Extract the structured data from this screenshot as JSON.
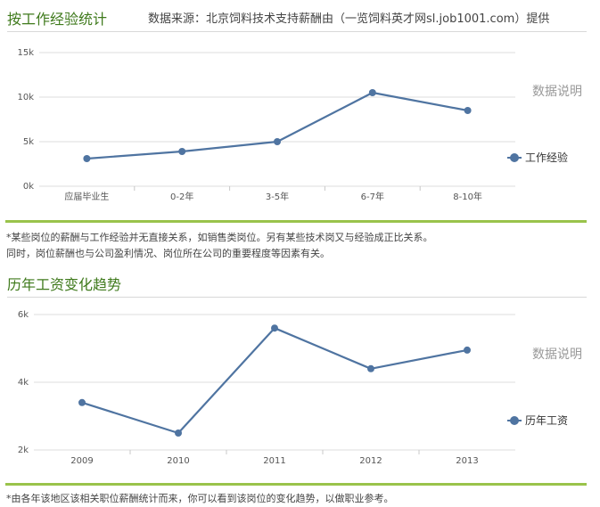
{
  "section1": {
    "title": "按工作经验统计",
    "source": "数据来源：北京饲料技术支持薪酬由（一览饲料英才网sl.job1001.com）提供",
    "explain_link": "数据说明",
    "legend_label": "工作经验",
    "note_line1": "*某些岗位的薪酬与工作经验并无直接关系，如销售类岗位。另有某些技术岗又与经验成正比关系。",
    "note_line2": "同时，岗位薪酬也与公司盈利情况、岗位所在公司的重要程度等因素有关。"
  },
  "section2": {
    "title": "历年工资变化趋势",
    "explain_link": "数据说明",
    "legend_label": "历年工资",
    "note_line1": "*由各年该地区该相关职位薪酬统计而来，你可以看到该岗位的变化趋势，以做职业参考。"
  },
  "colors": {
    "series": "#4f74a1",
    "accent_green": "#9ac34b",
    "title_green": "#3f7a1c",
    "grid": "#dcdcdc"
  },
  "chart_data": [
    {
      "type": "line",
      "categories": [
        "应届毕业生",
        "0-2年",
        "3-5年",
        "6-7年",
        "8-10年"
      ],
      "series": [
        {
          "name": "工作经验",
          "values": [
            3100,
            3900,
            5000,
            10500,
            8500
          ]
        }
      ],
      "yticks": [
        "0k",
        "5k",
        "10k",
        "15k"
      ],
      "ylim": [
        0,
        15000
      ],
      "grid": true,
      "legend": "right"
    },
    {
      "type": "line",
      "categories": [
        "2009",
        "2010",
        "2011",
        "2012",
        "2013"
      ],
      "series": [
        {
          "name": "历年工资",
          "values": [
            3400,
            2500,
            5600,
            4400,
            4950
          ]
        }
      ],
      "yticks": [
        "2k",
        "4k",
        "6k"
      ],
      "ylim": [
        2000,
        6000
      ],
      "grid": true,
      "legend": "right"
    }
  ]
}
